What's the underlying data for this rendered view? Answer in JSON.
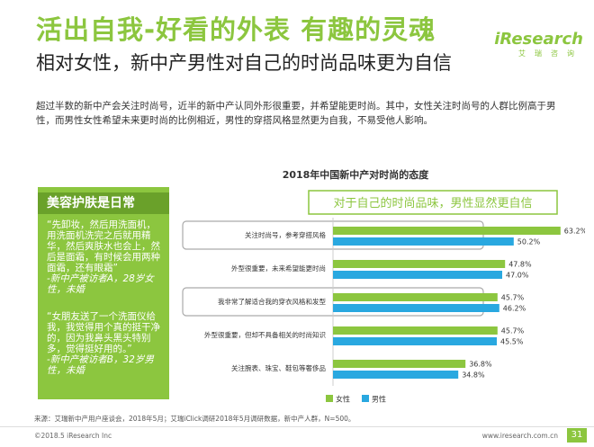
{
  "header": {
    "title": "活出自我-好看的外表 有趣的灵魂",
    "subtitle": "相对女性，新中产男性对自己的时尚品味更为自信",
    "logo_brand": "iResearch",
    "logo_cn": "艾瑞咨询"
  },
  "intro": "超过半数的新中产会关注时尚号，近半的新中产认同外形很重要，并希望能更时尚。其中，女性关注时尚号的人群比例高于男性，而男性女性希望未来更时尚的比例相近，男性的穿搭风格显然更为自我，不易受他人影响。",
  "quotes": {
    "heading": "美容护肤是日常",
    "items": [
      {
        "text": "“先卸妆，然后用洗面机，用洗面机洗完之后就用精华，然后爽肤水也会上，然后是面霜，有时候会用两种面霜，还有眼霜”",
        "source": "-新中产被访者A，28岁女性，未婚"
      },
      {
        "text": "“女朋友送了一个洗面仪给我，我觉得用个真的挺干净的，因为我鼻头黑头特别多，觉得挺好用的。”",
        "source": "-新中产被访者B，32岁男性，未婚"
      }
    ]
  },
  "colors": {
    "female": "#8cc63f",
    "male": "#29a8e0",
    "accent": "#8cc63f"
  },
  "chart_data": {
    "type": "bar",
    "orientation": "horizontal",
    "title": "2018年中国新中产对时尚的态度",
    "callout": "对于自己的时尚品味，男性显然更自信",
    "categories": [
      "关注时尚号，参考穿搭风格",
      "外型很重要，未来希望能更时尚",
      "我非常了解适合我的穿衣风格和发型",
      "外型很重要，但却不具备相关的时尚知识",
      "关注腕表、珠宝、鞋包等奢侈品"
    ],
    "series": [
      {
        "name": "女性",
        "values": [
          63.2,
          47.8,
          45.7,
          45.7,
          36.8
        ]
      },
      {
        "name": "男性",
        "values": [
          50.2,
          47.0,
          46.2,
          45.5,
          34.8
        ]
      }
    ],
    "value_suffix": "%",
    "highlighted_categories": [
      0,
      2
    ],
    "legend_position": "bottom-right",
    "xlim": [
      0,
      100
    ]
  },
  "footer": {
    "source": "来源：艾瑞新中产用户座谈会，2018年5月；艾瑞iClick调研2018年5月调研数据，新中产人群，N=500。",
    "copyright": "©2018.5 iResearch Inc",
    "website": "www.iresearch.com.cn",
    "page": "31"
  }
}
